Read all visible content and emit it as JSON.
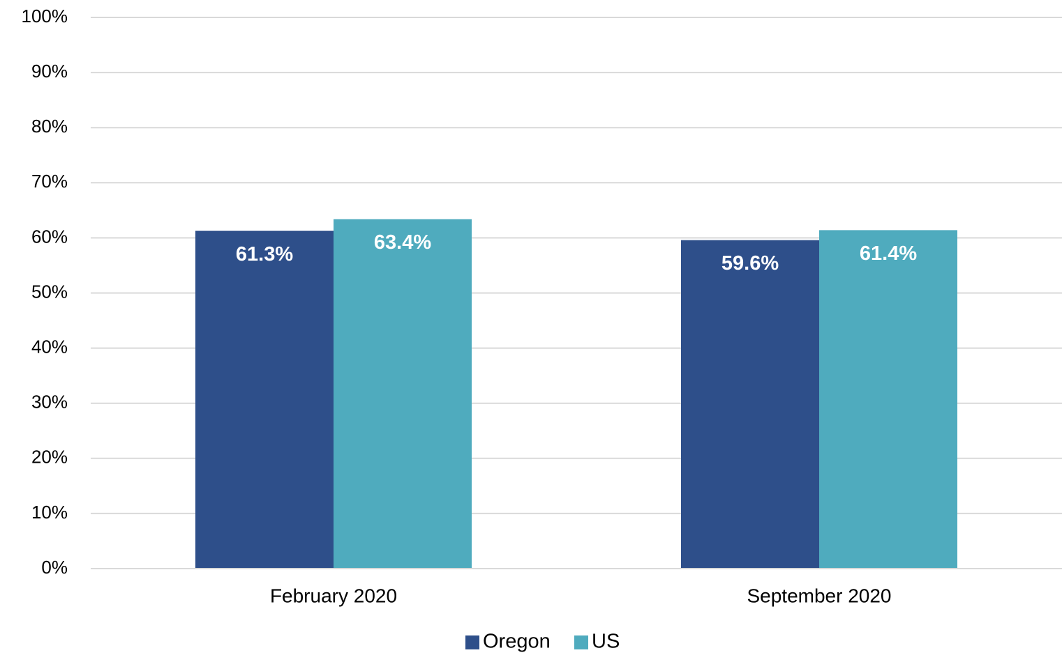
{
  "chart_data": {
    "type": "bar",
    "categories": [
      "February 2020",
      "September 2020"
    ],
    "series": [
      {
        "name": "Oregon",
        "color": "#2e4f8a",
        "values": [
          61.3,
          59.6
        ],
        "value_labels": [
          "61.3%",
          "59.6%"
        ]
      },
      {
        "name": "US",
        "color": "#4fabbe",
        "values": [
          63.4,
          61.4
        ],
        "value_labels": [
          "63.4%",
          "61.4%"
        ]
      }
    ],
    "ylim": [
      0,
      100
    ],
    "yticks": [
      {
        "value": 0,
        "label": "0%"
      },
      {
        "value": 10,
        "label": "10%"
      },
      {
        "value": 20,
        "label": "20%"
      },
      {
        "value": 30,
        "label": "30%"
      },
      {
        "value": 40,
        "label": "40%"
      },
      {
        "value": 50,
        "label": "50%"
      },
      {
        "value": 60,
        "label": "60%"
      },
      {
        "value": 70,
        "label": "70%"
      },
      {
        "value": 80,
        "label": "80%"
      },
      {
        "value": 90,
        "label": "90%"
      },
      {
        "value": 100,
        "label": "100%"
      }
    ],
    "grid": true,
    "legend": "bottom"
  }
}
